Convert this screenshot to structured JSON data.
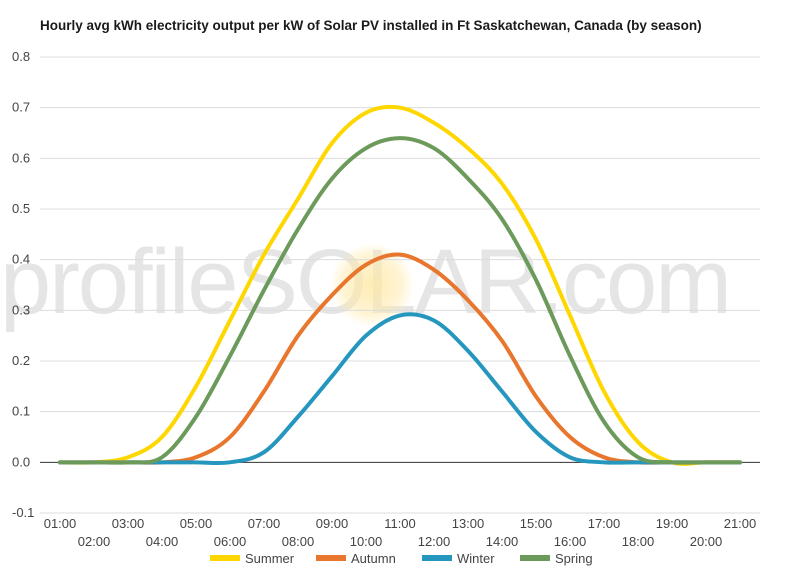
{
  "watermark_text": "profileSOLAR.com",
  "chart_data": {
    "type": "line",
    "title": "Hourly avg kWh electricity output per kW of Solar PV installed in Ft Saskatchewan, Canada (by season)",
    "x": [
      "01:00",
      "02:00",
      "03:00",
      "04:00",
      "05:00",
      "06:00",
      "07:00",
      "08:00",
      "09:00",
      "10:00",
      "11:00",
      "12:00",
      "13:00",
      "14:00",
      "15:00",
      "16:00",
      "17:00",
      "18:00",
      "19:00",
      "20:00",
      "21:00"
    ],
    "ylim": [
      -0.1,
      0.8
    ],
    "yticks": [
      "-0.1",
      "0.0",
      "0.1",
      "0.2",
      "0.3",
      "0.4",
      "0.5",
      "0.6",
      "0.7",
      "0.8"
    ],
    "grid": true,
    "legend_position": "bottom",
    "series": [
      {
        "name": "Summer",
        "color": "#ffd700",
        "values": [
          0,
          0,
          0.01,
          0.05,
          0.15,
          0.28,
          0.41,
          0.52,
          0.63,
          0.69,
          0.7,
          0.67,
          0.62,
          0.55,
          0.44,
          0.29,
          0.14,
          0.04,
          0,
          0,
          0
        ]
      },
      {
        "name": "Autumn",
        "color": "#e8762d",
        "values": [
          0,
          0,
          0,
          0,
          0.01,
          0.05,
          0.14,
          0.25,
          0.33,
          0.39,
          0.41,
          0.38,
          0.32,
          0.24,
          0.13,
          0.05,
          0.01,
          0,
          0,
          0,
          0
        ]
      },
      {
        "name": "Winter",
        "color": "#2596be",
        "values": [
          0,
          0,
          0,
          0,
          0,
          0,
          0.02,
          0.09,
          0.17,
          0.25,
          0.29,
          0.28,
          0.22,
          0.14,
          0.06,
          0.01,
          0,
          0,
          0,
          0,
          0
        ]
      },
      {
        "name": "Spring",
        "color": "#6b9a5b",
        "values": [
          0,
          0,
          0,
          0.01,
          0.09,
          0.21,
          0.34,
          0.46,
          0.56,
          0.62,
          0.64,
          0.62,
          0.56,
          0.48,
          0.36,
          0.21,
          0.08,
          0.01,
          0,
          0,
          0
        ]
      }
    ]
  }
}
